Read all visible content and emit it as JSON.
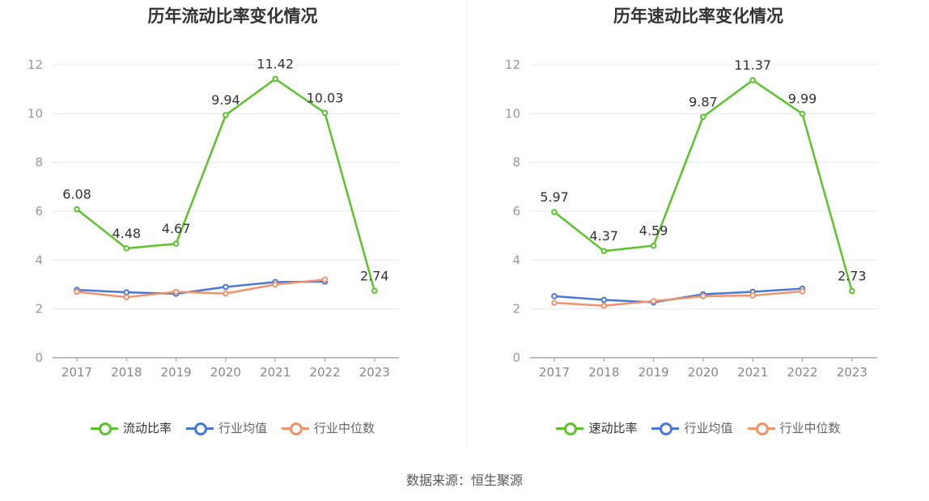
{
  "source_label": "数据来源：恒生聚源",
  "colors": {
    "ratio": "#5cc42b",
    "avg": "#4a78d8",
    "median": "#f0926b",
    "grid": "#e6e8f0",
    "axis": "#999999"
  },
  "chart_data": [
    {
      "type": "line",
      "title": "历年流动比率变化情况",
      "categories": [
        "2017",
        "2018",
        "2019",
        "2020",
        "2021",
        "2022",
        "2023"
      ],
      "ylim": [
        0,
        12
      ],
      "yticks": [
        "0",
        "2",
        "4",
        "6",
        "8",
        "10",
        "12"
      ],
      "grid": true,
      "legend_position": "bottom",
      "series": [
        {
          "name": "流动比率",
          "key": "ratio",
          "labeled": true,
          "values": [
            6.08,
            4.48,
            4.67,
            9.94,
            11.42,
            10.03,
            2.74
          ],
          "labels": [
            "6.08",
            "4.48",
            "4.67",
            "9.94",
            "11.42",
            "10.03",
            "2.74"
          ]
        },
        {
          "name": "行业均值",
          "key": "avg",
          "labeled": false,
          "values": [
            2.78,
            2.68,
            2.62,
            2.9,
            3.1,
            3.12,
            null
          ]
        },
        {
          "name": "行业中位数",
          "key": "median",
          "labeled": false,
          "values": [
            2.7,
            2.48,
            2.7,
            2.63,
            3.0,
            3.2,
            null
          ]
        }
      ]
    },
    {
      "type": "line",
      "title": "历年速动比率变化情况",
      "categories": [
        "2017",
        "2018",
        "2019",
        "2020",
        "2021",
        "2022",
        "2023"
      ],
      "ylim": [
        0,
        12
      ],
      "yticks": [
        "0",
        "2",
        "4",
        "6",
        "8",
        "10",
        "12"
      ],
      "grid": true,
      "legend_position": "bottom",
      "series": [
        {
          "name": "速动比率",
          "key": "ratio",
          "labeled": true,
          "values": [
            5.97,
            4.37,
            4.59,
            9.87,
            11.37,
            9.99,
            2.73
          ],
          "labels": [
            "5.97",
            "4.37",
            "4.59",
            "9.87",
            "11.37",
            "9.99",
            "2.73"
          ]
        },
        {
          "name": "行业均值",
          "key": "avg",
          "labeled": false,
          "values": [
            2.52,
            2.37,
            2.27,
            2.6,
            2.7,
            2.83,
            null
          ]
        },
        {
          "name": "行业中位数",
          "key": "median",
          "labeled": false,
          "values": [
            2.25,
            2.13,
            2.32,
            2.52,
            2.55,
            2.72,
            null
          ]
        }
      ]
    }
  ]
}
